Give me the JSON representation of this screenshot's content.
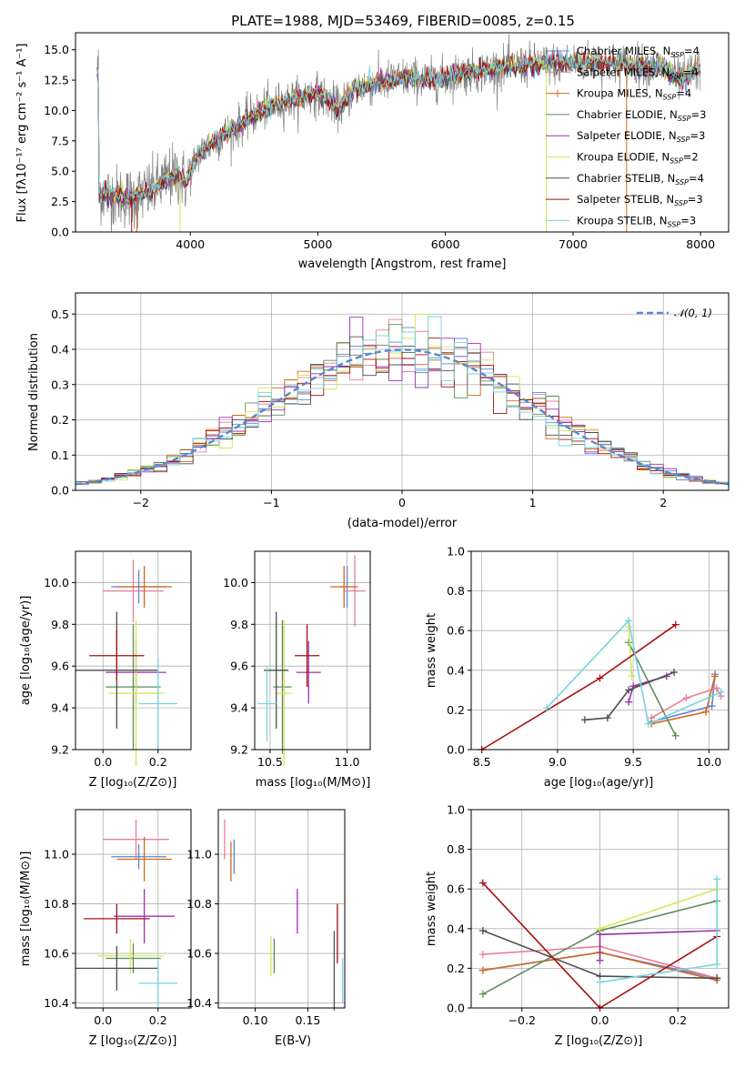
{
  "colors": {
    "Chabrier MILES": "#5a86d6",
    "Salpeter MILES": "#ea7d95",
    "Kroupa MILES": "#d2691e",
    "Chabrier ELODIE": "#5d8c5d",
    "Salpeter ELODIE": "#9b30b0",
    "Kroupa ELODIE": "#d4e657",
    "Chabrier STELIB": "#4d4d4d",
    "Salpeter STELIB": "#a80f0f",
    "Kroupa STELIB": "#76d4de",
    "data": "#808080",
    "normal": "#5a86d6"
  },
  "chart_data": [
    {
      "id": "spectrum",
      "type": "line",
      "title": "PLATE=1988, MJD=53469, FIBERID=0085, z=0.15",
      "xlabel": "wavelength [Angstrom, rest frame]",
      "ylabel": "Flux [fλ10⁻¹⁷ erg cm⁻² s⁻¹ A⁻¹]",
      "xlim": [
        3100,
        8220
      ],
      "ylim": [
        0,
        16.4
      ],
      "xticks": [
        "4000",
        "5000",
        "6000",
        "7000",
        "8000"
      ],
      "yticks": [
        "0.0",
        "2.5",
        "5.0",
        "7.5",
        "10.0",
        "12.5",
        "15.0"
      ],
      "continuum": [
        [
          3280,
          3.2
        ],
        [
          3400,
          3.0
        ],
        [
          3550,
          2.8
        ],
        [
          3700,
          3.4
        ],
        [
          3800,
          4.2
        ],
        [
          3900,
          4.8
        ],
        [
          3970,
          4.0
        ],
        [
          4050,
          6.2
        ],
        [
          4150,
          7.2
        ],
        [
          4300,
          8.2
        ],
        [
          4450,
          9.3
        ],
        [
          4550,
          10.0
        ],
        [
          4700,
          10.6
        ],
        [
          4850,
          11.0
        ],
        [
          5000,
          11.4
        ],
        [
          5170,
          10.2
        ],
        [
          5300,
          11.9
        ],
        [
          5500,
          12.3
        ],
        [
          5700,
          12.7
        ],
        [
          5900,
          12.5
        ],
        [
          6100,
          13.0
        ],
        [
          6300,
          13.3
        ],
        [
          6500,
          13.6
        ],
        [
          6700,
          13.8
        ],
        [
          6900,
          13.9
        ],
        [
          7100,
          14.0
        ],
        [
          7300,
          13.9
        ],
        [
          7500,
          13.7
        ],
        [
          7700,
          13.6
        ],
        [
          7850,
          12.4
        ],
        [
          7950,
          13.4
        ],
        [
          8000,
          13.2
        ]
      ],
      "legend": [
        {
          "label": "Chabrier MILES, N",
          "sub": "SSP",
          "suffix": "=4"
        },
        {
          "label": "Salpeter MILES, N",
          "sub": "SSP",
          "suffix": "=4"
        },
        {
          "label": "Kroupa MILES, N",
          "sub": "SSP",
          "suffix": "=4"
        },
        {
          "label": "Chabrier ELODIE, N",
          "sub": "SSP",
          "suffix": "=3"
        },
        {
          "label": "Salpeter ELODIE, N",
          "sub": "SSP",
          "suffix": "=3"
        },
        {
          "label": "Kroupa ELODIE, N",
          "sub": "SSP",
          "suffix": "=2"
        },
        {
          "label": "Chabrier STELIB, N",
          "sub": "SSP",
          "suffix": "=4"
        },
        {
          "label": "Salpeter STELIB, N",
          "sub": "SSP",
          "suffix": "=3"
        },
        {
          "label": "Kroupa STELIB, N",
          "sub": "SSP",
          "suffix": "=3"
        }
      ]
    },
    {
      "id": "residuals",
      "type": "line",
      "xlabel": "(data-model)/error",
      "ylabel": "Normed distribution",
      "xlim": [
        -2.5,
        2.5
      ],
      "ylim": [
        0,
        0.56
      ],
      "xticks": [
        "−2",
        "−1",
        "0",
        "1",
        "2"
      ],
      "yticks": [
        "0.0",
        "0.1",
        "0.2",
        "0.3",
        "0.4",
        "0.5"
      ],
      "legend_label": "𝒩(0, 1)",
      "bin_width": 0.1
    },
    {
      "id": "age-vs-Z",
      "type": "scatter",
      "xlabel": "Z [log₁₀(Z/Z⊙)]",
      "ylabel": "age  [log₁₀(age/yr)]",
      "xlim": [
        -0.1,
        0.32
      ],
      "ylim": [
        9.2,
        10.15
      ],
      "xticks": [
        "0.0",
        "0.2"
      ],
      "yticks": [
        "9.2",
        "9.4",
        "9.6",
        "9.8",
        "10.0"
      ],
      "points": [
        {
          "series": "Chabrier MILES",
          "x": 0.13,
          "y": 9.98,
          "xerr": 0.1,
          "yerr": 0.08
        },
        {
          "series": "Salpeter MILES",
          "x": 0.11,
          "y": 9.96,
          "xerr": 0.11,
          "yerr": 0.15
        },
        {
          "series": "Kroupa MILES",
          "x": 0.15,
          "y": 9.98,
          "xerr": 0.1,
          "yerr": 0.1
        },
        {
          "series": "Chabrier ELODIE",
          "x": 0.11,
          "y": 9.5,
          "xerr": 0.1,
          "yerr": 0.3
        },
        {
          "series": "Salpeter ELODIE",
          "x": 0.12,
          "y": 9.57,
          "xerr": 0.11,
          "yerr": 0.15
        },
        {
          "series": "Kroupa ELODIE",
          "x": 0.12,
          "y": 9.47,
          "xerr": 0.1,
          "yerr": 0.35
        },
        {
          "series": "Chabrier STELIB",
          "x": 0.05,
          "y": 9.58,
          "xerr": 0.15,
          "yerr": 0.28
        },
        {
          "series": "Salpeter STELIB",
          "x": 0.05,
          "y": 9.65,
          "xerr": 0.1,
          "yerr": 0.12
        },
        {
          "series": "Kroupa STELIB",
          "x": 0.2,
          "y": 9.42,
          "xerr": 0.07,
          "yerr": 0.22
        }
      ]
    },
    {
      "id": "age-vs-mass",
      "type": "scatter",
      "xlabel": "mass [log₁₀(M/M⊙)]",
      "xlim": [
        10.4,
        11.15
      ],
      "ylim": [
        9.2,
        10.15
      ],
      "xticks": [
        "10.5",
        "11.0"
      ],
      "yticks": [
        "9.2",
        "9.4",
        "9.6",
        "9.8",
        "10.0"
      ],
      "points": [
        {
          "series": "Chabrier MILES",
          "x": 11.0,
          "y": 9.98,
          "xerr": 0.05,
          "yerr": 0.1
        },
        {
          "series": "Salpeter MILES",
          "x": 11.05,
          "y": 9.96,
          "xerr": 0.07,
          "yerr": 0.17
        },
        {
          "series": "Kroupa MILES",
          "x": 10.98,
          "y": 9.98,
          "xerr": 0.09,
          "yerr": 0.1
        },
        {
          "series": "Chabrier ELODIE",
          "x": 10.58,
          "y": 9.5,
          "xerr": 0.06,
          "yerr": 0.32
        },
        {
          "series": "Salpeter ELODIE",
          "x": 10.75,
          "y": 9.57,
          "xerr": 0.08,
          "yerr": 0.15
        },
        {
          "series": "Kroupa ELODIE",
          "x": 10.59,
          "y": 9.47,
          "xerr": 0.05,
          "yerr": 0.35
        },
        {
          "series": "Chabrier STELIB",
          "x": 10.54,
          "y": 9.58,
          "xerr": 0.08,
          "yerr": 0.28
        },
        {
          "series": "Salpeter STELIB",
          "x": 10.74,
          "y": 9.65,
          "xerr": 0.08,
          "yerr": 0.15
        },
        {
          "series": "Kroupa STELIB",
          "x": 10.48,
          "y": 9.42,
          "xerr": 0.06,
          "yerr": 0.18
        }
      ]
    },
    {
      "id": "mass-weight-vs-age",
      "type": "line",
      "xlabel": "age  [log₁₀(age/yr)]",
      "ylabel": "mass weight",
      "xlim": [
        8.43,
        10.13
      ],
      "ylim": [
        0,
        1.0
      ],
      "xticks": [
        "8.5",
        "9.0",
        "9.5",
        "10.0"
      ],
      "yticks": [
        "0.0",
        "0.2",
        "0.4",
        "0.6",
        "0.8",
        "1.0"
      ],
      "series": [
        {
          "name": "Chabrier MILES",
          "x": [
            9.62,
            10.02,
            10.04
          ],
          "y": [
            0.14,
            0.22,
            0.38
          ]
        },
        {
          "name": "Salpeter MILES",
          "x": [
            9.62,
            9.85,
            10.05,
            10.08
          ],
          "y": [
            0.16,
            0.26,
            0.31,
            0.27
          ]
        },
        {
          "name": "Kroupa MILES",
          "x": [
            9.62,
            9.98,
            10.04
          ],
          "y": [
            0.13,
            0.19,
            0.37
          ]
        },
        {
          "name": "Chabrier ELODIE",
          "x": [
            9.47,
            9.78
          ],
          "y": [
            0.54,
            0.07
          ]
        },
        {
          "name": "Salpeter ELODIE",
          "x": [
            9.47,
            9.5,
            9.72
          ],
          "y": [
            0.24,
            0.32,
            0.37
          ]
        },
        {
          "name": "Kroupa ELODIE",
          "x": [
            9.47,
            9.49
          ],
          "y": [
            0.62,
            0.37
          ]
        },
        {
          "name": "Chabrier STELIB",
          "x": [
            9.18,
            9.33,
            9.47,
            9.77
          ],
          "y": [
            0.15,
            0.16,
            0.3,
            0.39
          ]
        },
        {
          "name": "Salpeter STELIB",
          "x": [
            8.5,
            9.28,
            9.78
          ],
          "y": [
            0.0,
            0.36,
            0.63
          ]
        },
        {
          "name": "Kroupa STELIB",
          "x": [
            8.93,
            9.47,
            9.6,
            10.08
          ],
          "y": [
            0.21,
            0.65,
            0.13,
            0.29
          ]
        }
      ]
    },
    {
      "id": "mass-vs-Z",
      "type": "scatter",
      "xlabel": "Z [log₁₀(Z/Z⊙)]",
      "ylabel": "mass [log₁₀(M/M⊙)]",
      "xlim": [
        -0.1,
        0.32
      ],
      "ylim": [
        10.38,
        11.18
      ],
      "xticks": [
        "0.0",
        "0.2"
      ],
      "yticks": [
        "10.4",
        "10.6",
        "10.8",
        "11.0"
      ],
      "points": [
        {
          "series": "Chabrier MILES",
          "x": 0.13,
          "y": 10.99,
          "xerr": 0.1,
          "yerr": 0.05
        },
        {
          "series": "Salpeter MILES",
          "x": 0.12,
          "y": 11.06,
          "xerr": 0.12,
          "yerr": 0.08
        },
        {
          "series": "Kroupa MILES",
          "x": 0.15,
          "y": 10.98,
          "xerr": 0.1,
          "yerr": 0.09
        },
        {
          "series": "Chabrier ELODIE",
          "x": 0.11,
          "y": 10.58,
          "xerr": 0.1,
          "yerr": 0.06
        },
        {
          "series": "Salpeter ELODIE",
          "x": 0.15,
          "y": 10.75,
          "xerr": 0.11,
          "yerr": 0.11
        },
        {
          "series": "Kroupa ELODIE",
          "x": 0.1,
          "y": 10.59,
          "xerr": 0.12,
          "yerr": 0.07
        },
        {
          "series": "Chabrier STELIB",
          "x": 0.05,
          "y": 10.54,
          "xerr": 0.15,
          "yerr": 0.09
        },
        {
          "series": "Salpeter STELIB",
          "x": 0.05,
          "y": 10.74,
          "xerr": 0.12,
          "yerr": 0.06
        },
        {
          "series": "Kroupa STELIB",
          "x": 0.2,
          "y": 10.48,
          "xerr": 0.07,
          "yerr": 0.09
        }
      ]
    },
    {
      "id": "mass-vs-EBV",
      "type": "scatter",
      "xlabel": "E(B-V)",
      "xlim": [
        0.065,
        0.185
      ],
      "ylim": [
        10.38,
        11.18
      ],
      "xticks": [
        "0.10",
        "0.15"
      ],
      "yticks": [
        "10.4",
        "10.6",
        "10.8",
        "11.0"
      ],
      "points": [
        {
          "series": "Chabrier MILES",
          "x": 0.08,
          "y": 10.99,
          "yerr": 0.07
        },
        {
          "series": "Salpeter MILES",
          "x": 0.071,
          "y": 11.06,
          "yerr": 0.08
        },
        {
          "series": "Kroupa MILES",
          "x": 0.077,
          "y": 10.97,
          "yerr": 0.08
        },
        {
          "series": "Chabrier ELODIE",
          "x": 0.118,
          "y": 10.59,
          "yerr": 0.07
        },
        {
          "series": "Salpeter ELODIE",
          "x": 0.14,
          "y": 10.77,
          "yerr": 0.09
        },
        {
          "series": "Kroupa ELODIE",
          "x": 0.115,
          "y": 10.59,
          "yerr": 0.08
        },
        {
          "series": "Chabrier STELIB",
          "x": 0.175,
          "y": 10.53,
          "yerr": 0.16
        },
        {
          "series": "Salpeter STELIB",
          "x": 0.178,
          "y": 10.68,
          "yerr": 0.12
        },
        {
          "series": "Kroupa STELIB",
          "x": 0.183,
          "y": 10.49,
          "yerr": 0.09
        }
      ]
    },
    {
      "id": "mass-weight-vs-Z",
      "type": "line",
      "xlabel": "Z [log₁₀(Z/Z⊙)]",
      "ylabel": "mass weight",
      "xlim": [
        -0.33,
        0.33
      ],
      "ylim": [
        0,
        1.0
      ],
      "xticks": [
        "−0.2",
        "0.0",
        "0.2"
      ],
      "yticks": [
        "0.0",
        "0.2",
        "0.4",
        "0.6",
        "0.8",
        "1.0"
      ],
      "series": [
        {
          "name": "Chabrier MILES",
          "x": [
            -0.3,
            0.0,
            0.3
          ],
          "y": [
            0.19,
            0.28,
            0.15
          ]
        },
        {
          "name": "Salpeter MILES",
          "x": [
            -0.3,
            0.0,
            0.3
          ],
          "y": [
            0.27,
            0.31,
            0.15
          ]
        },
        {
          "name": "Kroupa MILES",
          "x": [
            -0.3,
            0.0,
            0.3
          ],
          "y": [
            0.19,
            0.28,
            0.14
          ]
        },
        {
          "name": "Chabrier ELODIE",
          "x": [
            -0.3,
            0.0,
            0.3
          ],
          "y": [
            0.07,
            0.39,
            0.54
          ]
        },
        {
          "name": "Salpeter ELODIE",
          "x": [
            0.0,
            0.0,
            0.3
          ],
          "y": [
            0.24,
            0.37,
            0.39
          ]
        },
        {
          "name": "Kroupa ELODIE",
          "x": [
            0.0,
            0.3
          ],
          "y": [
            0.4,
            0.6
          ]
        },
        {
          "name": "Chabrier STELIB",
          "x": [
            -0.3,
            0.0,
            0.3
          ],
          "y": [
            0.39,
            0.16,
            0.15
          ]
        },
        {
          "name": "Salpeter STELIB",
          "x": [
            -0.3,
            0.0,
            0.3
          ],
          "y": [
            0.63,
            0.0,
            0.36
          ]
        },
        {
          "name": "Kroupa STELIB",
          "x": [
            0.0,
            0.3,
            0.3
          ],
          "y": [
            0.13,
            0.22,
            0.65
          ]
        }
      ]
    }
  ]
}
